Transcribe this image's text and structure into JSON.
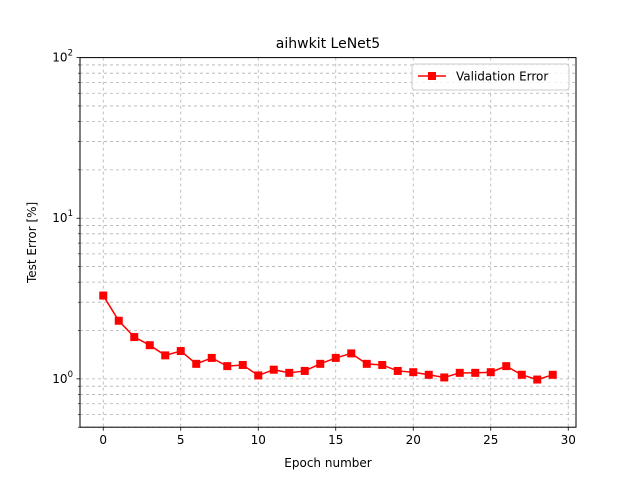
{
  "chart_data": {
    "type": "line",
    "title": "aihwkit LeNet5",
    "xlabel": "Epoch number",
    "ylabel": "Test Error [%]",
    "yscale": "log",
    "xlim": [
      -1.5,
      30.5
    ],
    "ylim": [
      0.5,
      100
    ],
    "xticks": [
      0,
      5,
      10,
      15,
      20,
      25,
      30
    ],
    "xtick_labels": [
      "0",
      "5",
      "10",
      "15",
      "20",
      "25",
      "30"
    ],
    "yticks_major": [
      1,
      10,
      100
    ],
    "grid": true,
    "legend_position": "top-right",
    "series": [
      {
        "name": "Validation Error",
        "color": "#ff0000",
        "marker": "square",
        "x": [
          0,
          1,
          2,
          3,
          4,
          5,
          6,
          7,
          8,
          9,
          10,
          11,
          12,
          13,
          14,
          15,
          16,
          17,
          18,
          19,
          20,
          21,
          22,
          23,
          24,
          25,
          26,
          27,
          28,
          29
        ],
        "y": [
          3.3,
          2.3,
          1.82,
          1.62,
          1.4,
          1.49,
          1.24,
          1.35,
          1.2,
          1.22,
          1.05,
          1.14,
          1.09,
          1.12,
          1.24,
          1.35,
          1.44,
          1.24,
          1.22,
          1.12,
          1.1,
          1.06,
          1.02,
          1.09,
          1.09,
          1.1,
          1.2,
          1.06,
          0.99,
          1.06
        ]
      }
    ]
  }
}
